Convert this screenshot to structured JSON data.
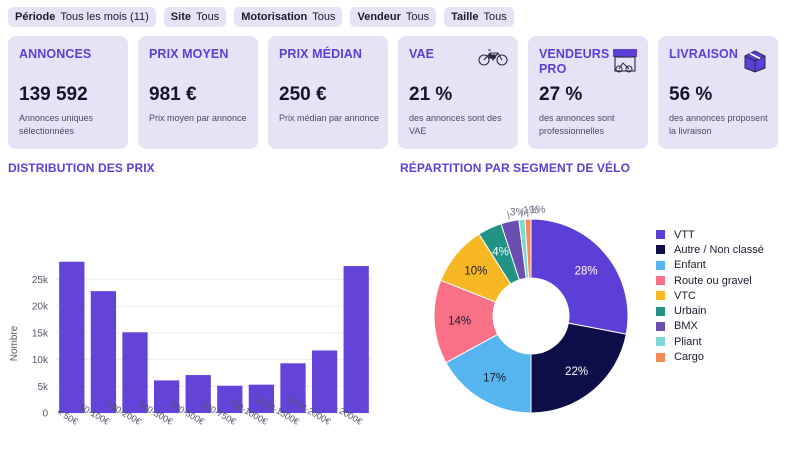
{
  "filters": [
    {
      "key": "Période",
      "value": "Tous les mois (11)"
    },
    {
      "key": "Site",
      "value": "Tous"
    },
    {
      "key": "Motorisation",
      "value": "Tous"
    },
    {
      "key": "Vendeur",
      "value": "Tous"
    },
    {
      "key": "Taille",
      "value": "Tous"
    }
  ],
  "cards": [
    {
      "title": "ANNONCES",
      "value": "139 592",
      "desc": "Annonces uniques sélectionnées",
      "icon": null
    },
    {
      "title": "PRIX MOYEN",
      "value": "981 €",
      "desc": "Prix moyen par annonce",
      "icon": null
    },
    {
      "title": "PRIX MÉDIAN",
      "value": "250 €",
      "desc": "Prix médian par annonce",
      "icon": null
    },
    {
      "title": "VAE",
      "value": "21 %",
      "desc": "des annonces sont des VAE",
      "icon": "ebike-icon"
    },
    {
      "title": "VENDEURS PRO",
      "value": "27 %",
      "desc": "des annonces sont professionnelles",
      "icon": "shop-icon"
    },
    {
      "title": "LIVRAISON",
      "value": "56 %",
      "desc": "des annonces proposent la livraison",
      "icon": "package-icon"
    }
  ],
  "sections": {
    "price_distribution": "DISTRIBUTION DES PRIX",
    "segment_split": "RÉPARTITION PAR SEGMENT DE VÉLO"
  },
  "colors": {
    "accent": "#5b3fd6",
    "card_bg": "#e6e3f7",
    "bar": "#6444d8"
  },
  "chart_data": [
    {
      "type": "bar",
      "title": "DISTRIBUTION DES PRIX",
      "xlabel": "",
      "ylabel": "Nombre",
      "categories": [
        "< 50€",
        "50-100€",
        "100-200€",
        "200-300€",
        "300-500€",
        "500-750€",
        "750-1000€",
        "1000-1500€",
        "1500-2000€",
        "> 2000€"
      ],
      "values": [
        28300,
        22800,
        15100,
        6100,
        7100,
        5100,
        5300,
        9300,
        11700,
        27500
      ],
      "yticks": [
        0,
        5000,
        10000,
        15000,
        20000,
        25000
      ],
      "ytick_labels": [
        "0",
        "5k",
        "10k",
        "15k",
        "20k",
        "25k"
      ],
      "ylim": [
        0,
        29000
      ],
      "grid": true
    },
    {
      "type": "pie",
      "title": "RÉPARTITION PAR SEGMENT DE VÉLO",
      "donut": true,
      "legend_position": "right",
      "labels": [
        "VTT",
        "Autre / Non classé",
        "Enfant",
        "Route ou gravel",
        "VTC",
        "Urbain",
        "BMX",
        "Pliant",
        "Cargo"
      ],
      "values": [
        28,
        22,
        17,
        14,
        10,
        4,
        3,
        1,
        1
      ],
      "value_labels": [
        "28%",
        "22%",
        "17%",
        "14%",
        "10%",
        "4%",
        "3%",
        "1%",
        "1%"
      ],
      "colors": [
        "#5c3fd6",
        "#0e0e4a",
        "#56b4ee",
        "#f87187",
        "#f8b823",
        "#1f9484",
        "#6b4fb0",
        "#7dd8d3",
        "#f6895a"
      ]
    }
  ]
}
